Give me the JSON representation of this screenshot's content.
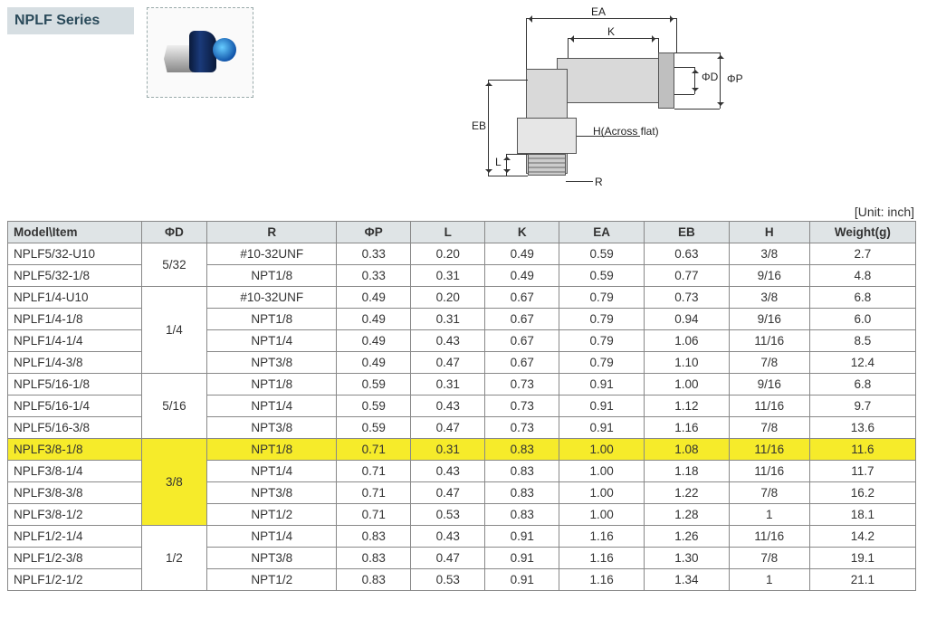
{
  "header": {
    "series_title": "NPLF Series",
    "unit_label": "[Unit: inch]"
  },
  "diagram_labels": {
    "EA": "EA",
    "K": "K",
    "phiD": "ΦD",
    "phiP": "ΦP",
    "EB": "EB",
    "L": "L",
    "R": "R",
    "H": "H(Across flat)"
  },
  "columns": [
    "Model\\Item",
    "ΦD",
    "R",
    "ΦP",
    "L",
    "K",
    "EA",
    "EB",
    "H",
    "Weight(g)"
  ],
  "groups": [
    {
      "phiD": "5/32",
      "rows": [
        {
          "model": "NPLF5/32-U10",
          "R": "#10-32UNF",
          "phiP": "0.33",
          "L": "0.20",
          "K": "0.49",
          "EA": "0.59",
          "EB": "0.63",
          "H": "3/8",
          "W": "2.7"
        },
        {
          "model": "NPLF5/32-1/8",
          "R": "NPT1/8",
          "phiP": "0.33",
          "L": "0.31",
          "K": "0.49",
          "EA": "0.59",
          "EB": "0.77",
          "H": "9/16",
          "W": "4.8"
        }
      ]
    },
    {
      "phiD": "1/4",
      "rows": [
        {
          "model": "NPLF1/4-U10",
          "R": "#10-32UNF",
          "phiP": "0.49",
          "L": "0.20",
          "K": "0.67",
          "EA": "0.79",
          "EB": "0.73",
          "H": "3/8",
          "W": "6.8"
        },
        {
          "model": "NPLF1/4-1/8",
          "R": "NPT1/8",
          "phiP": "0.49",
          "L": "0.31",
          "K": "0.67",
          "EA": "0.79",
          "EB": "0.94",
          "H": "9/16",
          "W": "6.0"
        },
        {
          "model": "NPLF1/4-1/4",
          "R": "NPT1/4",
          "phiP": "0.49",
          "L": "0.43",
          "K": "0.67",
          "EA": "0.79",
          "EB": "1.06",
          "H": "11/16",
          "W": "8.5"
        },
        {
          "model": "NPLF1/4-3/8",
          "R": "NPT3/8",
          "phiP": "0.49",
          "L": "0.47",
          "K": "0.67",
          "EA": "0.79",
          "EB": "1.10",
          "H": "7/8",
          "W": "12.4"
        }
      ]
    },
    {
      "phiD": "5/16",
      "rows": [
        {
          "model": "NPLF5/16-1/8",
          "R": "NPT1/8",
          "phiP": "0.59",
          "L": "0.31",
          "K": "0.73",
          "EA": "0.91",
          "EB": "1.00",
          "H": "9/16",
          "W": "6.8"
        },
        {
          "model": "NPLF5/16-1/4",
          "R": "NPT1/4",
          "phiP": "0.59",
          "L": "0.43",
          "K": "0.73",
          "EA": "0.91",
          "EB": "1.12",
          "H": "11/16",
          "W": "9.7"
        },
        {
          "model": "NPLF5/16-3/8",
          "R": "NPT3/8",
          "phiP": "0.59",
          "L": "0.47",
          "K": "0.73",
          "EA": "0.91",
          "EB": "1.16",
          "H": "7/8",
          "W": "13.6"
        }
      ]
    },
    {
      "phiD": "3/8",
      "phiD_highlight": true,
      "rows": [
        {
          "model": "NPLF3/8-1/8",
          "R": "NPT1/8",
          "phiP": "0.71",
          "L": "0.31",
          "K": "0.83",
          "EA": "1.00",
          "EB": "1.08",
          "H": "11/16",
          "W": "11.6",
          "highlight": true
        },
        {
          "model": "NPLF3/8-1/4",
          "R": "NPT1/4",
          "phiP": "0.71",
          "L": "0.43",
          "K": "0.83",
          "EA": "1.00",
          "EB": "1.18",
          "H": "11/16",
          "W": "11.7"
        },
        {
          "model": "NPLF3/8-3/8",
          "R": "NPT3/8",
          "phiP": "0.71",
          "L": "0.47",
          "K": "0.83",
          "EA": "1.00",
          "EB": "1.22",
          "H": "7/8",
          "W": "16.2"
        },
        {
          "model": "NPLF3/8-1/2",
          "R": "NPT1/2",
          "phiP": "0.71",
          "L": "0.53",
          "K": "0.83",
          "EA": "1.00",
          "EB": "1.28",
          "H": "1",
          "W": "18.1"
        }
      ]
    },
    {
      "phiD": "1/2",
      "rows": [
        {
          "model": "NPLF1/2-1/4",
          "R": "NPT1/4",
          "phiP": "0.83",
          "L": "0.43",
          "K": "0.91",
          "EA": "1.16",
          "EB": "1.26",
          "H": "11/16",
          "W": "14.2"
        },
        {
          "model": "NPLF1/2-3/8",
          "R": "NPT3/8",
          "phiP": "0.83",
          "L": "0.47",
          "K": "0.91",
          "EA": "1.16",
          "EB": "1.30",
          "H": "7/8",
          "W": "19.1"
        },
        {
          "model": "NPLF1/2-1/2",
          "R": "NPT1/2",
          "phiP": "0.83",
          "L": "0.53",
          "K": "0.91",
          "EA": "1.16",
          "EB": "1.34",
          "H": "1",
          "W": "21.1"
        }
      ]
    }
  ]
}
